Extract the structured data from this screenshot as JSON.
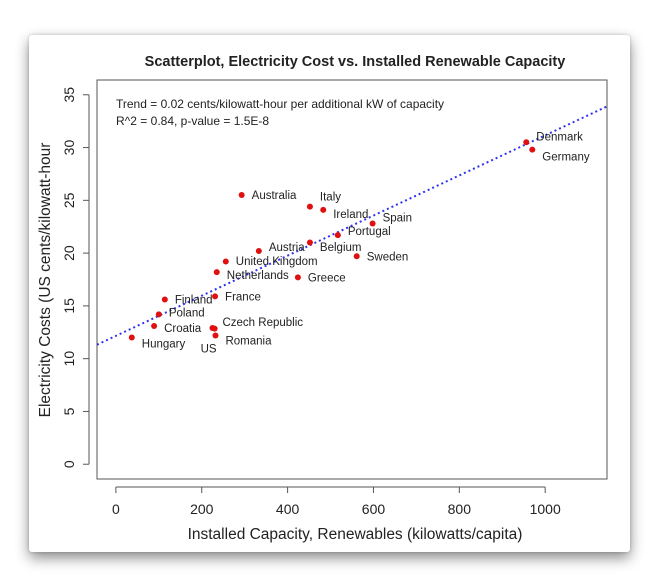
{
  "chart_data": {
    "type": "scatter",
    "title": "Scatterplot, Electricity Cost vs. Installed Renewable Capacity",
    "xlabel": "Installed Capacity, Renewables (kilowatts/capita)",
    "ylabel": "Electricity Costs (US cents/kilowatt-hour",
    "xlim": [
      -44,
      1144
    ],
    "ylim": [
      -1.4,
      36.4
    ],
    "xticks": [
      0,
      200,
      400,
      600,
      800,
      1000
    ],
    "yticks": [
      0,
      5,
      10,
      15,
      20,
      25,
      30,
      35
    ],
    "grid": false,
    "annotations": [
      "Trend = 0.02 cents/kilowatt-hour per additional kW of capacity",
      "R^2 = 0.84, p-value = 1.5E-8"
    ],
    "point_color": "#e01010",
    "trend_color": "#3333ee",
    "trendline": {
      "slope": 0.019,
      "intercept": 12.16,
      "style": "dotted"
    },
    "points": [
      {
        "label": "Denmark",
        "x": 956,
        "y": 30.5
      },
      {
        "label": "Germany",
        "x": 970,
        "y": 29.8
      },
      {
        "label": "Australia",
        "x": 293,
        "y": 25.5
      },
      {
        "label": "Italy",
        "x": 452,
        "y": 24.4
      },
      {
        "label": "Ireland",
        "x": 483,
        "y": 24.1
      },
      {
        "label": "Spain",
        "x": 598,
        "y": 22.8
      },
      {
        "label": "Portugal",
        "x": 517,
        "y": 21.7
      },
      {
        "label": "Belgium",
        "x": 452,
        "y": 21.0
      },
      {
        "label": "Austria",
        "x": 333,
        "y": 20.2
      },
      {
        "label": "Sweden",
        "x": 561,
        "y": 19.7
      },
      {
        "label": "United Kingdom",
        "x": 256,
        "y": 19.2
      },
      {
        "label": "Netherlands",
        "x": 235,
        "y": 18.2
      },
      {
        "label": "Greece",
        "x": 424,
        "y": 17.7
      },
      {
        "label": "France",
        "x": 231,
        "y": 15.9
      },
      {
        "label": "Finland",
        "x": 114,
        "y": 15.6
      },
      {
        "label": "Poland",
        "x": 100,
        "y": 14.2
      },
      {
        "label": "Croatia",
        "x": 89,
        "y": 13.1
      },
      {
        "label": "Czech Republic",
        "x": 225,
        "y": 12.9
      },
      {
        "label": "US",
        "x": 230,
        "y": 12.85
      },
      {
        "label": "Romania",
        "x": 232,
        "y": 12.2
      },
      {
        "label": "Hungary",
        "x": 37,
        "y": 12.0
      }
    ]
  }
}
